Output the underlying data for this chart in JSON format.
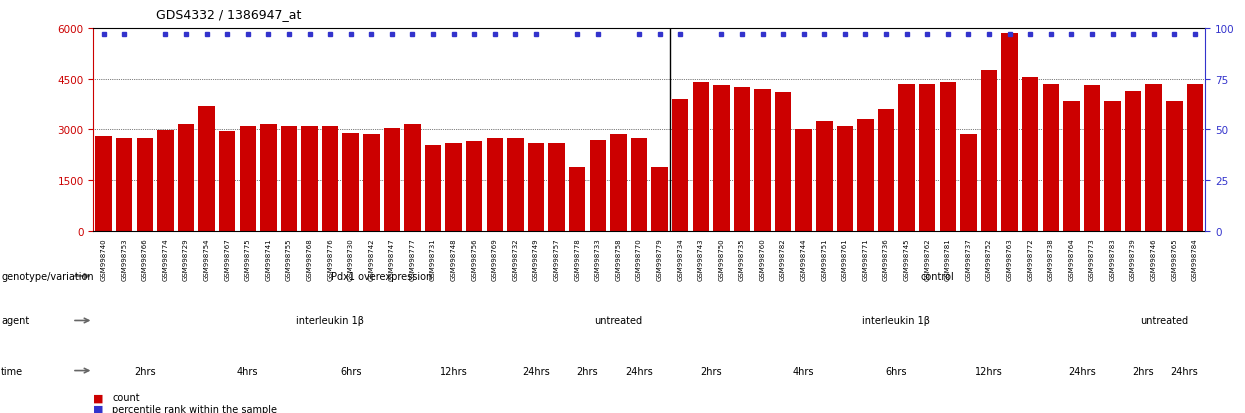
{
  "title": "GDS4332 / 1386947_at",
  "bar_color": "#cc0000",
  "dot_color": "#3333cc",
  "samples": [
    "GSM998740",
    "GSM998753",
    "GSM998766",
    "GSM998774",
    "GSM998729",
    "GSM998754",
    "GSM998767",
    "GSM998775",
    "GSM998741",
    "GSM998755",
    "GSM998768",
    "GSM998776",
    "GSM998730",
    "GSM998742",
    "GSM998747",
    "GSM998777",
    "GSM998731",
    "GSM998748",
    "GSM998756",
    "GSM998769",
    "GSM998732",
    "GSM998749",
    "GSM998757",
    "GSM998778",
    "GSM998733",
    "GSM998758",
    "GSM998770",
    "GSM998779",
    "GSM998734",
    "GSM998743",
    "GSM998750",
    "GSM998735",
    "GSM998760",
    "GSM998782",
    "GSM998744",
    "GSM998751",
    "GSM998761",
    "GSM998771",
    "GSM998736",
    "GSM998745",
    "GSM998762",
    "GSM998781",
    "GSM998737",
    "GSM998752",
    "GSM998763",
    "GSM998772",
    "GSM998738",
    "GSM998764",
    "GSM998773",
    "GSM998783",
    "GSM998739",
    "GSM998746",
    "GSM998765",
    "GSM998784"
  ],
  "bar_heights": [
    2800,
    2750,
    2750,
    2980,
    3150,
    3700,
    2950,
    3100,
    3150,
    3100,
    3100,
    3100,
    2900,
    2850,
    3050,
    3150,
    2550,
    2600,
    2650,
    2750,
    2750,
    2600,
    2600,
    1900,
    2700,
    2850,
    2750,
    1900,
    3900,
    4400,
    4300,
    4250,
    4200,
    4100,
    3000,
    3250,
    3100,
    3300,
    3600,
    4350,
    4350,
    4400,
    2850,
    4750,
    5850,
    4550,
    4350,
    3850,
    4300,
    3850,
    4150,
    4350,
    3850,
    4350
  ],
  "dot_show": [
    true,
    true,
    false,
    true,
    true,
    true,
    true,
    true,
    true,
    true,
    true,
    true,
    true,
    true,
    true,
    true,
    true,
    true,
    true,
    true,
    true,
    true,
    false,
    true,
    true,
    false,
    true,
    true,
    true,
    false,
    true,
    true,
    true,
    true,
    true,
    true,
    true,
    true,
    true,
    true,
    true,
    true,
    true,
    true,
    true,
    true,
    true,
    true,
    true,
    true,
    true,
    true,
    true,
    true
  ],
  "separator_idx": 27.5,
  "genotype_segments": [
    {
      "label": "Pdx1 overexpression",
      "start": 0,
      "end": 27,
      "color": "#aaddaa"
    },
    {
      "label": "control",
      "start": 28,
      "end": 53,
      "color": "#aaddaa"
    }
  ],
  "agent_segments": [
    {
      "label": "interleukin 1β",
      "start": 0,
      "end": 22,
      "color": "#bbbbee"
    },
    {
      "label": "untreated",
      "start": 23,
      "end": 27,
      "color": "#8888cc"
    },
    {
      "label": "interleukin 1β",
      "start": 28,
      "end": 49,
      "color": "#bbbbee"
    },
    {
      "label": "untreated",
      "start": 50,
      "end": 53,
      "color": "#8888cc"
    }
  ],
  "time_segments": [
    {
      "label": "2hrs",
      "start": 0,
      "end": 4,
      "color": "#ffdddd"
    },
    {
      "label": "4hrs",
      "start": 5,
      "end": 9,
      "color": "#ffbbbb"
    },
    {
      "label": "6hrs",
      "start": 10,
      "end": 14,
      "color": "#ff9999"
    },
    {
      "label": "12hrs",
      "start": 15,
      "end": 19,
      "color": "#ff7777"
    },
    {
      "label": "24hrs",
      "start": 20,
      "end": 22,
      "color": "#ee5555"
    },
    {
      "label": "2hrs",
      "start": 23,
      "end": 24,
      "color": "#ffdddd"
    },
    {
      "label": "24hrs",
      "start": 25,
      "end": 27,
      "color": "#ee5555"
    },
    {
      "label": "2hrs",
      "start": 28,
      "end": 31,
      "color": "#ffdddd"
    },
    {
      "label": "4hrs",
      "start": 32,
      "end": 36,
      "color": "#ffbbbb"
    },
    {
      "label": "6hrs",
      "start": 37,
      "end": 40,
      "color": "#ff9999"
    },
    {
      "label": "12hrs",
      "start": 41,
      "end": 45,
      "color": "#ff7777"
    },
    {
      "label": "24hrs",
      "start": 46,
      "end": 49,
      "color": "#ee5555"
    },
    {
      "label": "2hrs",
      "start": 50,
      "end": 51,
      "color": "#ffdddd"
    },
    {
      "label": "24hrs",
      "start": 52,
      "end": 53,
      "color": "#ee5555"
    }
  ],
  "axis_color_left": "#cc0000",
  "axis_color_right": "#3333cc",
  "legend_count_color": "#cc0000",
  "legend_pct_color": "#3333cc"
}
